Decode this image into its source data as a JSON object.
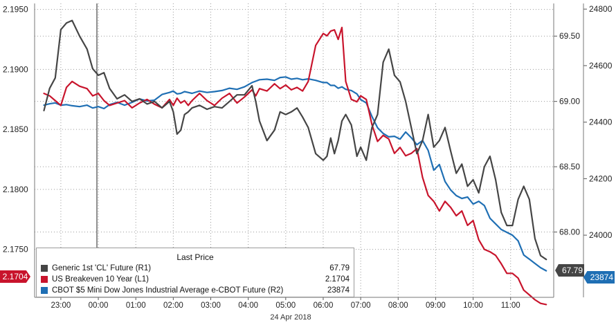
{
  "legend": {
    "title": "Last Price",
    "rows": [
      {
        "name": "Generic 1st 'CL' Future  (R1)",
        "value": "67.79"
      },
      {
        "name": "US Breakeven 10 Year  (L1)",
        "value": "2.1704"
      },
      {
        "name": "CBOT $5 Mini Dow Jones Industrial Average e-CBOT Future  (R2)",
        "value": "23874"
      }
    ]
  },
  "date_label": "24 Apr 2018",
  "last_labels": {
    "left": "2.1704",
    "right1": "67.79",
    "right2": "23874"
  },
  "colors": {
    "cl": "#454545",
    "breakeven": "#c8142c",
    "dow": "#1f6fb4",
    "grid": "#9a9a9a"
  },
  "chart_data": {
    "type": "line",
    "x_ticks": [
      "23:00",
      "00:00",
      "01:00",
      "02:00",
      "03:00",
      "04:00",
      "05:00",
      "06:00",
      "07:00",
      "08:00",
      "09:00",
      "10:00",
      "11:00"
    ],
    "axes": {
      "left": {
        "ticks": [
          "2.1750",
          "2.1800",
          "2.1850",
          "2.1900",
          "2.1950"
        ],
        "ylim": [
          2.171,
          2.1955
        ]
      },
      "right1": {
        "ticks": [
          "68.00",
          "68.50",
          "69.00",
          "69.50"
        ],
        "ylim": [
          67.5,
          69.75
        ]
      },
      "right2": {
        "ticks": [
          "24000",
          "24200",
          "24400",
          "24600",
          "24800"
        ],
        "ylim": [
          23780,
          24820
        ]
      }
    },
    "series": [
      {
        "name": "Generic 1st 'CL' Future",
        "axis": "right1",
        "x": [
          22.55,
          22.7,
          22.85,
          23.0,
          23.15,
          23.3,
          23.5,
          23.7,
          23.85,
          24.0,
          24.15,
          24.3,
          24.5,
          24.7,
          24.9,
          25.1,
          25.3,
          25.5,
          25.7,
          25.9,
          26.0,
          26.1,
          26.2,
          26.3,
          26.4,
          26.5,
          26.7,
          26.9,
          27.1,
          27.3,
          27.5,
          27.7,
          27.9,
          28.1,
          28.2,
          28.3,
          28.5,
          28.7,
          28.85,
          29.0,
          29.15,
          29.3,
          29.45,
          29.6,
          29.8,
          30.0,
          30.1,
          30.2,
          30.3,
          30.4,
          30.5,
          30.6,
          30.75,
          30.9,
          31.0,
          31.15,
          31.3,
          31.45,
          31.6,
          31.75,
          31.9,
          32.05,
          32.2,
          32.35,
          32.5,
          32.65,
          32.8,
          32.95,
          33.1,
          33.25,
          33.4,
          33.55,
          33.7,
          33.85,
          34.0,
          34.15,
          34.3,
          34.45,
          34.6,
          34.75,
          34.9,
          35.05,
          35.2,
          35.35,
          35.5,
          35.65,
          35.8,
          35.95
        ],
        "values": [
          68.93,
          69.1,
          69.18,
          69.55,
          69.6,
          69.62,
          69.5,
          69.4,
          69.25,
          69.2,
          69.22,
          69.1,
          69.02,
          69.05,
          69.0,
          69.02,
          68.98,
          69.0,
          68.95,
          69.0,
          68.92,
          68.75,
          68.78,
          68.9,
          68.92,
          68.95,
          68.97,
          68.94,
          68.96,
          68.95,
          69.0,
          69.05,
          69.05,
          69.12,
          69.0,
          68.85,
          68.7,
          68.78,
          68.92,
          68.9,
          68.92,
          68.95,
          68.88,
          68.8,
          68.6,
          68.55,
          68.58,
          68.72,
          68.6,
          68.7,
          68.85,
          68.9,
          68.82,
          68.58,
          68.65,
          68.55,
          68.8,
          68.9,
          69.3,
          69.4,
          69.2,
          69.15,
          69.0,
          68.8,
          68.6,
          68.7,
          68.9,
          68.65,
          68.7,
          68.8,
          68.62,
          68.45,
          68.52,
          68.35,
          68.4,
          68.3,
          68.5,
          68.58,
          68.4,
          68.15,
          68.05,
          68.05,
          68.25,
          68.35,
          68.25,
          67.95,
          67.82,
          67.79
        ]
      },
      {
        "name": "US Breakeven 10 Year",
        "axis": "left",
        "x": [
          22.55,
          22.7,
          22.85,
          23.0,
          23.15,
          23.3,
          23.5,
          23.7,
          23.85,
          24.0,
          24.15,
          24.3,
          24.5,
          24.7,
          24.9,
          25.1,
          25.3,
          25.5,
          25.7,
          25.9,
          26.0,
          26.1,
          26.2,
          26.3,
          26.4,
          26.5,
          26.7,
          26.9,
          27.1,
          27.3,
          27.5,
          27.7,
          27.9,
          28.1,
          28.2,
          28.3,
          28.5,
          28.7,
          28.85,
          29.0,
          29.15,
          29.3,
          29.45,
          29.6,
          29.8,
          30.0,
          30.1,
          30.2,
          30.3,
          30.4,
          30.5,
          30.6,
          30.75,
          30.9,
          31.0,
          31.15,
          31.3,
          31.45,
          31.6,
          31.75,
          31.9,
          32.05,
          32.2,
          32.35,
          32.5,
          32.65,
          32.8,
          32.95,
          33.1,
          33.25,
          33.4,
          33.55,
          33.7,
          33.85,
          34.0,
          34.15,
          34.3,
          34.45,
          34.6,
          34.75,
          34.9,
          35.05,
          35.2,
          35.35,
          35.5,
          35.65,
          35.8,
          35.95
        ],
        "values": [
          2.188,
          2.1878,
          2.1874,
          2.187,
          2.1885,
          2.189,
          2.1886,
          2.1884,
          2.1878,
          2.188,
          2.1874,
          2.187,
          2.1872,
          2.1874,
          2.1868,
          2.1872,
          2.1875,
          2.1871,
          2.1868,
          2.1875,
          2.187,
          2.1876,
          2.1872,
          2.1874,
          2.187,
          2.1874,
          2.188,
          2.1874,
          2.187,
          2.1876,
          2.188,
          2.1872,
          2.1877,
          2.1883,
          2.1878,
          2.1884,
          2.1882,
          2.1888,
          2.1884,
          2.1887,
          2.1883,
          2.1885,
          2.1882,
          2.189,
          2.192,
          2.193,
          2.1928,
          2.1932,
          2.1933,
          2.1925,
          2.1935,
          2.189,
          2.1875,
          2.1873,
          2.1878,
          2.1875,
          2.1854,
          2.184,
          2.1845,
          2.1842,
          2.183,
          2.1835,
          2.1828,
          2.183,
          2.1834,
          2.181,
          2.1795,
          2.179,
          2.1782,
          2.179,
          2.1785,
          2.1778,
          2.1782,
          2.177,
          2.1774,
          2.1758,
          2.175,
          2.1748,
          2.1745,
          2.1738,
          2.173,
          2.173,
          2.1726,
          2.1716,
          2.1712,
          2.1708,
          2.1705,
          2.1704
        ]
      },
      {
        "name": "CBOT $5 Mini Dow Jones Industrial Average e-CBOT Future",
        "axis": "right2",
        "x": [
          22.55,
          22.7,
          22.85,
          23.0,
          23.15,
          23.3,
          23.5,
          23.7,
          23.85,
          24.0,
          24.15,
          24.3,
          24.5,
          24.7,
          24.9,
          25.1,
          25.3,
          25.5,
          25.7,
          25.9,
          26.0,
          26.1,
          26.2,
          26.3,
          26.4,
          26.5,
          26.7,
          26.9,
          27.1,
          27.3,
          27.5,
          27.7,
          27.9,
          28.1,
          28.2,
          28.3,
          28.5,
          28.7,
          28.85,
          29.0,
          29.15,
          29.3,
          29.45,
          29.6,
          29.8,
          30.0,
          30.1,
          30.2,
          30.3,
          30.4,
          30.5,
          30.6,
          30.75,
          30.9,
          31.0,
          31.15,
          31.3,
          31.45,
          31.6,
          31.75,
          31.9,
          32.05,
          32.2,
          32.35,
          32.5,
          32.65,
          32.8,
          32.95,
          33.1,
          33.25,
          33.4,
          33.55,
          33.7,
          33.85,
          34.0,
          34.15,
          34.3,
          34.45,
          34.6,
          34.75,
          34.9,
          35.05,
          35.2,
          35.35,
          35.5,
          35.65,
          35.8,
          35.95
        ],
        "values": [
          24460,
          24465,
          24468,
          24460,
          24462,
          24458,
          24455,
          24460,
          24450,
          24455,
          24448,
          24462,
          24470,
          24460,
          24470,
          24482,
          24475,
          24478,
          24498,
          24505,
          24510,
          24500,
          24502,
          24508,
          24505,
          24502,
          24510,
          24505,
          24508,
          24512,
          24520,
          24516,
          24525,
          24540,
          24545,
          24550,
          24552,
          24548,
          24558,
          24560,
          24552,
          24555,
          24550,
          24553,
          24548,
          24540,
          24540,
          24530,
          24530,
          24520,
          24525,
          24516,
          24512,
          24500,
          24480,
          24468,
          24420,
          24380,
          24360,
          24348,
          24350,
          24340,
          24365,
          24345,
          24320,
          24335,
          24300,
          24230,
          24250,
          24190,
          24160,
          24140,
          24130,
          24135,
          24110,
          24120,
          24105,
          24060,
          24040,
          24020,
          24010,
          24000,
          23980,
          23930,
          23915,
          23900,
          23885,
          23874
        ]
      }
    ]
  }
}
